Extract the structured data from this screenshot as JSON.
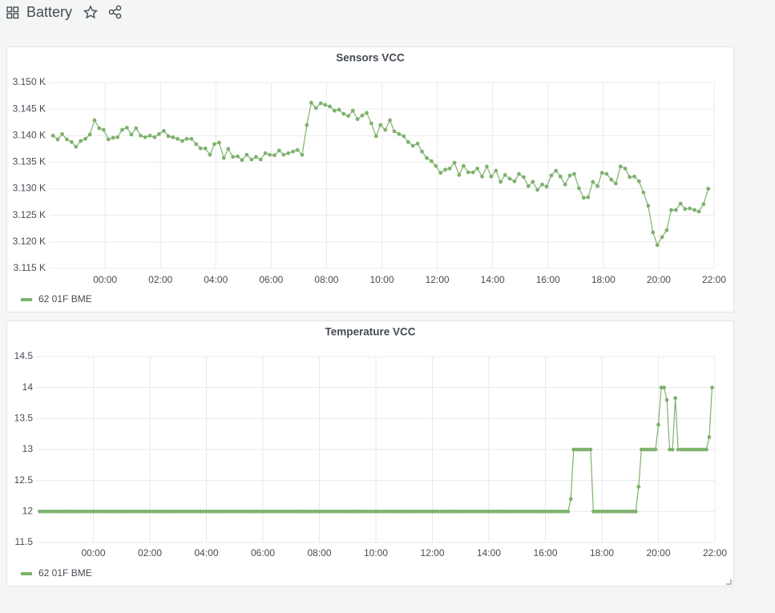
{
  "header": {
    "title": "Battery"
  },
  "chart_data": [
    {
      "type": "line",
      "title": "Sensors VCC",
      "x": [
        -1.88,
        -1.71,
        -1.55,
        -1.38,
        -1.21,
        -1.05,
        -0.88,
        -0.71,
        -0.55,
        -0.38,
        -0.21,
        -0.05,
        0.12,
        0.29,
        0.45,
        0.62,
        0.79,
        0.95,
        1.12,
        1.29,
        1.45,
        1.62,
        1.79,
        1.95,
        2.12,
        2.29,
        2.45,
        2.62,
        2.79,
        2.95,
        3.12,
        3.29,
        3.45,
        3.62,
        3.79,
        3.95,
        4.12,
        4.29,
        4.45,
        4.62,
        4.79,
        4.95,
        5.12,
        5.29,
        5.45,
        5.62,
        5.79,
        5.95,
        6.12,
        6.29,
        6.45,
        6.62,
        6.79,
        6.95,
        7.12,
        7.29,
        7.45,
        7.62,
        7.79,
        7.95,
        8.12,
        8.29,
        8.45,
        8.62,
        8.79,
        8.95,
        9.12,
        9.29,
        9.45,
        9.62,
        9.79,
        9.95,
        10.12,
        10.29,
        10.45,
        10.62,
        10.79,
        10.95,
        11.12,
        11.29,
        11.45,
        11.62,
        11.79,
        11.95,
        12.12,
        12.29,
        12.45,
        12.62,
        12.79,
        12.95,
        13.12,
        13.29,
        13.45,
        13.62,
        13.79,
        13.95,
        14.12,
        14.29,
        14.45,
        14.62,
        14.79,
        14.95,
        15.12,
        15.29,
        15.45,
        15.62,
        15.79,
        15.95,
        16.12,
        16.29,
        16.45,
        16.62,
        16.79,
        16.95,
        17.12,
        17.29,
        17.45,
        17.62,
        17.79,
        17.95,
        18.12,
        18.29,
        18.45,
        18.62,
        18.79,
        18.95,
        19.12,
        19.29,
        19.45,
        19.62,
        19.79,
        19.95,
        20.12,
        20.29,
        20.45,
        20.62,
        20.79,
        20.95,
        21.12,
        21.29,
        21.45,
        21.62,
        21.79
      ],
      "series": [
        {
          "name": "62 01F BME",
          "color": "#7eb26d",
          "values": [
            3140,
            3139.3,
            3140.3,
            3139.3,
            3138.8,
            3137.9,
            3139,
            3139.4,
            3140.2,
            3142.9,
            3141.4,
            3141.1,
            3139.3,
            3139.6,
            3139.7,
            3141.1,
            3141.5,
            3140.2,
            3141.4,
            3140,
            3139.7,
            3140,
            3139.7,
            3140.3,
            3140.9,
            3139.9,
            3139.7,
            3139.4,
            3139,
            3139.4,
            3139.4,
            3138.4,
            3137.6,
            3137.6,
            3136.4,
            3138.4,
            3138.7,
            3135.8,
            3137.5,
            3136,
            3136.1,
            3135.4,
            3136.4,
            3135.5,
            3136,
            3135.5,
            3136.7,
            3136.4,
            3136.3,
            3137.2,
            3136.4,
            3136.7,
            3137,
            3137.3,
            3136.4,
            3142,
            3146.2,
            3145.2,
            3146.1,
            3145.8,
            3145.5,
            3144.7,
            3144.9,
            3144.1,
            3143.7,
            3144.7,
            3143.1,
            3143.8,
            3144.3,
            3142.3,
            3139.9,
            3142,
            3141.1,
            3142.9,
            3140.8,
            3140.3,
            3139.9,
            3138.8,
            3138.1,
            3138.5,
            3137,
            3135.8,
            3135.2,
            3134.3,
            3133,
            3133.6,
            3133.8,
            3134.9,
            3132.6,
            3134.3,
            3133.1,
            3133.1,
            3133.8,
            3132.3,
            3134.2,
            3132.3,
            3133.4,
            3131.3,
            3132.6,
            3131.9,
            3131.4,
            3132.8,
            3132.2,
            3130.5,
            3131.3,
            3129.8,
            3130.8,
            3130.4,
            3132.5,
            3133.4,
            3132.3,
            3130.8,
            3132.5,
            3132.8,
            3130.1,
            3128.3,
            3128.4,
            3131.3,
            3130.5,
            3133,
            3132.8,
            3131.7,
            3131,
            3134.2,
            3133.8,
            3132.2,
            3132.3,
            3131.4,
            3129.3,
            3126.8,
            3121.8,
            3119.4,
            3120.9,
            3122.2,
            3126,
            3126,
            3127.2,
            3126.2,
            3126.3,
            3126,
            3125.7,
            3127.1,
            3130
          ]
        }
      ],
      "xlim": [
        -2,
        22
      ],
      "xticks": [
        {
          "value": 0,
          "label": "00:00"
        },
        {
          "value": 2,
          "label": "02:00"
        },
        {
          "value": 4,
          "label": "04:00"
        },
        {
          "value": 6,
          "label": "06:00"
        },
        {
          "value": 8,
          "label": "08:00"
        },
        {
          "value": 10,
          "label": "10:00"
        },
        {
          "value": 12,
          "label": "12:00"
        },
        {
          "value": 14,
          "label": "14:00"
        },
        {
          "value": 16,
          "label": "16:00"
        },
        {
          "value": 18,
          "label": "18:00"
        },
        {
          "value": 20,
          "label": "20:00"
        },
        {
          "value": 22,
          "label": "22:00"
        }
      ],
      "ylim": [
        3115,
        3150
      ],
      "yticks": [
        {
          "value": 3150,
          "label": "3.150 K"
        },
        {
          "value": 3145,
          "label": "3.145 K"
        },
        {
          "value": 3140,
          "label": "3.140 K"
        },
        {
          "value": 3135,
          "label": "3.135 K"
        },
        {
          "value": 3130,
          "label": "3.130 K"
        },
        {
          "value": 3125,
          "label": "3.125 K"
        },
        {
          "value": 3120,
          "label": "3.120 K"
        },
        {
          "value": 3115,
          "label": "3.115 K"
        }
      ],
      "grid": true,
      "legend": "bottom-left"
    },
    {
      "type": "line",
      "title": "Temperature VCC",
      "x": [
        -1.9,
        -1.8,
        -1.7,
        -1.6,
        -1.5,
        -1.4,
        -1.3,
        -1.2,
        -1.1,
        -1,
        -0.9,
        -0.8,
        -0.7,
        -0.6,
        -0.5,
        -0.4,
        -0.3,
        -0.2,
        -0.1,
        0,
        0.1,
        0.2,
        0.3,
        0.4,
        0.5,
        0.6,
        0.7,
        0.8,
        0.9,
        1,
        1.1,
        1.2,
        1.3,
        1.4,
        1.5,
        1.6,
        1.7,
        1.8,
        1.9,
        2,
        2.1,
        2.2,
        2.3,
        2.4,
        2.5,
        2.6,
        2.7,
        2.8,
        2.9,
        3,
        3.1,
        3.2,
        3.3,
        3.4,
        3.5,
        3.6,
        3.7,
        3.8,
        3.9,
        4,
        4.1,
        4.2,
        4.3,
        4.4,
        4.5,
        4.6,
        4.7,
        4.8,
        4.9,
        5,
        5.1,
        5.2,
        5.3,
        5.4,
        5.5,
        5.6,
        5.7,
        5.8,
        5.9,
        6,
        6.1,
        6.2,
        6.3,
        6.4,
        6.5,
        6.6,
        6.7,
        6.8,
        6.9,
        7,
        7.1,
        7.2,
        7.3,
        7.4,
        7.5,
        7.6,
        7.7,
        7.8,
        7.9,
        8,
        8.1,
        8.2,
        8.3,
        8.4,
        8.5,
        8.6,
        8.7,
        8.8,
        8.9,
        9,
        9.1,
        9.2,
        9.3,
        9.4,
        9.5,
        9.6,
        9.7,
        9.8,
        9.9,
        10,
        10.1,
        10.2,
        10.3,
        10.4,
        10.5,
        10.6,
        10.7,
        10.8,
        10.9,
        11,
        11.1,
        11.2,
        11.3,
        11.4,
        11.5,
        11.6,
        11.7,
        11.8,
        11.9,
        12,
        12.1,
        12.2,
        12.3,
        12.4,
        12.5,
        12.6,
        12.7,
        12.8,
        12.9,
        13,
        13.1,
        13.2,
        13.3,
        13.4,
        13.5,
        13.6,
        13.7,
        13.8,
        13.9,
        14,
        14.1,
        14.2,
        14.3,
        14.4,
        14.5,
        14.6,
        14.7,
        14.8,
        14.9,
        15,
        15.1,
        15.2,
        15.3,
        15.4,
        15.5,
        15.6,
        15.7,
        15.8,
        15.9,
        16,
        16.1,
        16.2,
        16.3,
        16.4,
        16.5,
        16.6,
        16.7,
        16.8,
        16.9,
        17,
        17.1,
        17.2,
        17.3,
        17.4,
        17.5,
        17.6,
        17.7,
        17.8,
        17.9,
        18,
        18.1,
        18.2,
        18.3,
        18.4,
        18.5,
        18.6,
        18.7,
        18.8,
        18.9,
        19,
        19.1,
        19.2,
        19.3,
        19.4,
        19.5,
        19.6,
        19.7,
        19.8,
        19.9,
        20,
        20.1,
        20.2,
        20.3,
        20.4,
        20.5,
        20.6,
        20.7,
        20.8,
        20.9,
        21,
        21.1,
        21.2,
        21.3,
        21.4,
        21.5,
        21.6,
        21.7,
        21.8,
        21.9
      ],
      "series": [
        {
          "name": "62 01F BME",
          "color": "#7eb26d",
          "values": [
            12,
            12,
            12,
            12,
            12,
            12,
            12,
            12,
            12,
            12,
            12,
            12,
            12,
            12,
            12,
            12,
            12,
            12,
            12,
            12,
            12,
            12,
            12,
            12,
            12,
            12,
            12,
            12,
            12,
            12,
            12,
            12,
            12,
            12,
            12,
            12,
            12,
            12,
            12,
            12,
            12,
            12,
            12,
            12,
            12,
            12,
            12,
            12,
            12,
            12,
            12,
            12,
            12,
            12,
            12,
            12,
            12,
            12,
            12,
            12,
            12,
            12,
            12,
            12,
            12,
            12,
            12,
            12,
            12,
            12,
            12,
            12,
            12,
            12,
            12,
            12,
            12,
            12,
            12,
            12,
            12,
            12,
            12,
            12,
            12,
            12,
            12,
            12,
            12,
            12,
            12,
            12,
            12,
            12,
            12,
            12,
            12,
            12,
            12,
            12,
            12,
            12,
            12,
            12,
            12,
            12,
            12,
            12,
            12,
            12,
            12,
            12,
            12,
            12,
            12,
            12,
            12,
            12,
            12,
            12,
            12,
            12,
            12,
            12,
            12,
            12,
            12,
            12,
            12,
            12,
            12,
            12,
            12,
            12,
            12,
            12,
            12,
            12,
            12,
            12,
            12,
            12,
            12,
            12,
            12,
            12,
            12,
            12,
            12,
            12,
            12,
            12,
            12,
            12,
            12,
            12,
            12,
            12,
            12,
            12,
            12,
            12,
            12,
            12,
            12,
            12,
            12,
            12,
            12,
            12,
            12,
            12,
            12,
            12,
            12,
            12,
            12,
            12,
            12,
            12,
            12,
            12,
            12,
            12,
            12,
            12,
            12,
            12,
            12.2,
            13,
            13,
            13,
            13,
            13,
            13,
            13,
            12,
            12,
            12,
            12,
            12,
            12,
            12,
            12,
            12,
            12,
            12,
            12,
            12,
            12,
            12,
            12,
            12.4,
            13,
            13,
            13,
            13,
            13,
            13,
            13.4,
            14,
            14,
            13.8,
            13,
            13,
            13.83,
            13,
            13,
            13,
            13,
            13,
            13,
            13,
            13,
            13,
            13,
            13,
            13.2,
            14
          ]
        }
      ],
      "xlim": [
        -2,
        22
      ],
      "xticks": [
        {
          "value": 0,
          "label": "00:00"
        },
        {
          "value": 2,
          "label": "02:00"
        },
        {
          "value": 4,
          "label": "04:00"
        },
        {
          "value": 6,
          "label": "06:00"
        },
        {
          "value": 8,
          "label": "08:00"
        },
        {
          "value": 10,
          "label": "10:00"
        },
        {
          "value": 12,
          "label": "12:00"
        },
        {
          "value": 14,
          "label": "14:00"
        },
        {
          "value": 16,
          "label": "16:00"
        },
        {
          "value": 18,
          "label": "18:00"
        },
        {
          "value": 20,
          "label": "20:00"
        },
        {
          "value": 22,
          "label": "22:00"
        }
      ],
      "ylim": [
        11.5,
        14.5
      ],
      "yticks": [
        14.5,
        14,
        13.5,
        13,
        12.5,
        12,
        11.5
      ],
      "grid": true,
      "legend": "bottom-left"
    }
  ]
}
